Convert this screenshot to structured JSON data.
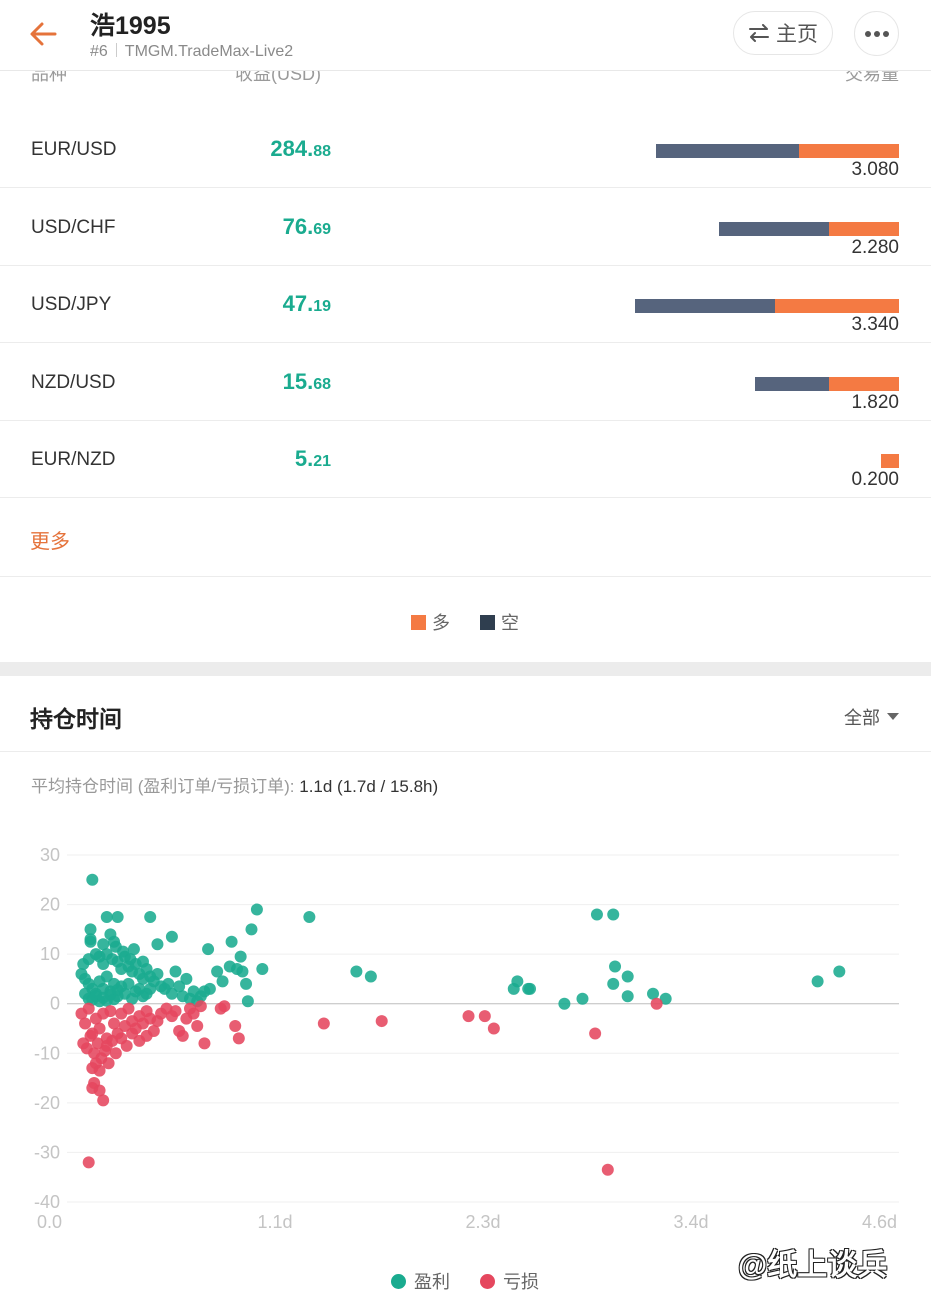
{
  "header": {
    "title": "浩1995",
    "rank": "#6",
    "server": "TMGM.TradeMax-Live2",
    "home_label": "主页"
  },
  "table": {
    "col_symbol": "品种",
    "col_pnl": "收益(USD)",
    "col_volume": "交易量",
    "rows": [
      {
        "symbol": "EUR/USD",
        "pnl_int": "284.",
        "pnl_dec": "88",
        "volume": "3.080",
        "short_frac": 0.59,
        "long_frac": 0.41
      },
      {
        "symbol": "USD/CHF",
        "pnl_int": "76.",
        "pnl_dec": "69",
        "volume": "2.280",
        "short_frac": 0.61,
        "long_frac": 0.39
      },
      {
        "symbol": "USD/JPY",
        "pnl_int": "47.",
        "pnl_dec": "19",
        "volume": "3.340",
        "short_frac": 0.53,
        "long_frac": 0.47
      },
      {
        "symbol": "NZD/USD",
        "pnl_int": "15.",
        "pnl_dec": "68",
        "volume": "1.820",
        "short_frac": 0.51,
        "long_frac": 0.49
      },
      {
        "symbol": "EUR/NZD",
        "pnl_int": "5.",
        "pnl_dec": "21",
        "volume": "0.200",
        "short_frac": 0.0,
        "long_frac": 1.0
      }
    ],
    "max_volume": 3.34,
    "more_label": "更多",
    "legend": [
      {
        "label": "多",
        "color": "#f47a43"
      },
      {
        "label": "空",
        "color": "#2f3e4f"
      }
    ]
  },
  "holding": {
    "title": "持仓时间",
    "filter": "全部",
    "avg_label": "平均持仓时间 (盈利订单/亏损订单):",
    "avg_value": "1.1d (1.7d / 15.8h)"
  },
  "colors": {
    "profit": "#1aab8f",
    "loss": "#e5475e",
    "accent": "#e5733b"
  },
  "chart_data": {
    "type": "scatter",
    "x_unit": "days",
    "xlim": [
      0,
      4.6
    ],
    "ylim": [
      -40,
      30
    ],
    "x_ticks": [
      "0.0",
      "1.1d",
      "2.3d",
      "3.4d",
      "4.6d"
    ],
    "y_ticks": [
      "30",
      "20",
      "10",
      "0",
      "-10",
      "-20",
      "-30",
      "-40"
    ],
    "grid": true,
    "legend": "bottom-center",
    "series": [
      {
        "name": "盈利",
        "color": "#1aab8f",
        "points": [
          [
            0.14,
            25
          ],
          [
            0.22,
            17.5
          ],
          [
            0.28,
            17.5
          ],
          [
            0.46,
            17.5
          ],
          [
            0.13,
            15
          ],
          [
            0.24,
            14
          ],
          [
            0.13,
            13
          ],
          [
            0.13,
            12.5
          ],
          [
            0.27,
            11.5
          ],
          [
            0.37,
            11
          ],
          [
            0.09,
            8
          ],
          [
            0.12,
            9
          ],
          [
            0.16,
            10
          ],
          [
            0.18,
            9.5
          ],
          [
            0.2,
            8
          ],
          [
            0.22,
            10
          ],
          [
            0.25,
            9
          ],
          [
            0.28,
            8.5
          ],
          [
            0.3,
            7
          ],
          [
            0.32,
            9.5
          ],
          [
            0.34,
            7.5
          ],
          [
            0.36,
            6.5
          ],
          [
            0.38,
            8
          ],
          [
            0.4,
            6
          ],
          [
            0.42,
            5
          ],
          [
            0.44,
            7
          ],
          [
            0.46,
            5.5
          ],
          [
            0.48,
            4.5
          ],
          [
            0.5,
            6
          ],
          [
            0.52,
            3.5
          ],
          [
            0.08,
            6
          ],
          [
            0.1,
            5
          ],
          [
            0.12,
            4
          ],
          [
            0.14,
            3
          ],
          [
            0.16,
            2
          ],
          [
            0.18,
            4.5
          ],
          [
            0.2,
            3
          ],
          [
            0.22,
            5.5
          ],
          [
            0.24,
            2.5
          ],
          [
            0.26,
            4
          ],
          [
            0.28,
            1.5
          ],
          [
            0.3,
            3.5
          ],
          [
            0.32,
            2
          ],
          [
            0.34,
            4
          ],
          [
            0.36,
            1
          ],
          [
            0.38,
            2.5
          ],
          [
            0.4,
            3
          ],
          [
            0.42,
            1.5
          ],
          [
            0.44,
            2
          ],
          [
            0.46,
            3
          ],
          [
            0.1,
            2
          ],
          [
            0.12,
            1
          ],
          [
            0.14,
            0.8
          ],
          [
            0.16,
            1.5
          ],
          [
            0.18,
            0.5
          ],
          [
            0.2,
            1.2
          ],
          [
            0.22,
            0.6
          ],
          [
            0.24,
            1.8
          ],
          [
            0.26,
            0.9
          ],
          [
            0.28,
            2.8
          ],
          [
            0.54,
            3
          ],
          [
            0.56,
            4
          ],
          [
            0.58,
            2
          ],
          [
            0.6,
            6.5
          ],
          [
            0.62,
            3.5
          ],
          [
            0.64,
            1.5
          ],
          [
            0.66,
            5
          ],
          [
            0.68,
            1
          ],
          [
            0.7,
            2.5
          ],
          [
            0.72,
            0.5
          ],
          [
            0.2,
            12
          ],
          [
            0.26,
            12.5
          ],
          [
            0.31,
            10.5
          ],
          [
            0.35,
            9
          ],
          [
            0.42,
            8.5
          ],
          [
            0.5,
            12
          ],
          [
            0.58,
            13.5
          ],
          [
            0.74,
            1.5
          ],
          [
            0.76,
            2.5
          ],
          [
            0.79,
            3
          ],
          [
            0.78,
            11
          ],
          [
            0.83,
            6.5
          ],
          [
            0.86,
            4.5
          ],
          [
            0.9,
            7.5
          ],
          [
            0.91,
            12.5
          ],
          [
            0.94,
            7
          ],
          [
            0.96,
            9.5
          ],
          [
            0.97,
            6.5
          ],
          [
            0.99,
            4
          ],
          [
            1.0,
            0.5
          ],
          [
            1.02,
            15
          ],
          [
            1.05,
            19
          ],
          [
            1.08,
            7
          ],
          [
            1.34,
            17.5
          ],
          [
            1.6,
            6.5
          ],
          [
            1.68,
            5.5
          ],
          [
            2.47,
            3
          ],
          [
            2.49,
            4.5
          ],
          [
            2.55,
            3
          ],
          [
            2.56,
            3
          ],
          [
            2.75,
            0
          ],
          [
            2.85,
            1
          ],
          [
            2.93,
            18
          ],
          [
            3.02,
            18
          ],
          [
            3.03,
            7.5
          ],
          [
            3.02,
            4
          ],
          [
            3.1,
            5.5
          ],
          [
            3.1,
            1.5
          ],
          [
            3.24,
            2
          ],
          [
            3.31,
            1
          ],
          [
            4.15,
            4.5
          ],
          [
            4.27,
            6.5
          ]
        ]
      },
      {
        "name": "亏损",
        "color": "#e5475e",
        "points": [
          [
            0.08,
            -2
          ],
          [
            0.1,
            -4
          ],
          [
            0.12,
            -1
          ],
          [
            0.14,
            -6
          ],
          [
            0.16,
            -3
          ],
          [
            0.18,
            -5
          ],
          [
            0.2,
            -2
          ],
          [
            0.22,
            -7
          ],
          [
            0.24,
            -1.5
          ],
          [
            0.26,
            -4
          ],
          [
            0.09,
            -8
          ],
          [
            0.11,
            -9
          ],
          [
            0.13,
            -6.5
          ],
          [
            0.15,
            -10
          ],
          [
            0.17,
            -8
          ],
          [
            0.19,
            -11
          ],
          [
            0.21,
            -9.5
          ],
          [
            0.23,
            -12
          ],
          [
            0.25,
            -7.5
          ],
          [
            0.27,
            -10
          ],
          [
            0.14,
            -13
          ],
          [
            0.16,
            -12
          ],
          [
            0.18,
            -13.5
          ],
          [
            0.15,
            -16
          ],
          [
            0.14,
            -17
          ],
          [
            0.18,
            -17.5
          ],
          [
            0.2,
            -19.5
          ],
          [
            0.12,
            -32
          ],
          [
            0.22,
            -8.5
          ],
          [
            0.28,
            -6
          ],
          [
            0.3,
            -2
          ],
          [
            0.32,
            -4.5
          ],
          [
            0.34,
            -1
          ],
          [
            0.36,
            -3.5
          ],
          [
            0.38,
            -5
          ],
          [
            0.4,
            -2.5
          ],
          [
            0.42,
            -4
          ],
          [
            0.44,
            -1.5
          ],
          [
            0.46,
            -3
          ],
          [
            0.48,
            -5.5
          ],
          [
            0.3,
            -7
          ],
          [
            0.33,
            -8.5
          ],
          [
            0.36,
            -6
          ],
          [
            0.4,
            -7.5
          ],
          [
            0.44,
            -6.5
          ],
          [
            0.5,
            -3.5
          ],
          [
            0.52,
            -2
          ],
          [
            0.55,
            -1
          ],
          [
            0.58,
            -2.5
          ],
          [
            0.6,
            -1.5
          ],
          [
            0.62,
            -5.5
          ],
          [
            0.64,
            -6.5
          ],
          [
            0.66,
            -3
          ],
          [
            0.68,
            -1
          ],
          [
            0.7,
            -2
          ],
          [
            0.72,
            -4.5
          ],
          [
            0.74,
            -0.5
          ],
          [
            0.76,
            -8
          ],
          [
            0.85,
            -1
          ],
          [
            0.87,
            -0.5
          ],
          [
            0.93,
            -4.5
          ],
          [
            0.95,
            -7
          ],
          [
            1.42,
            -4
          ],
          [
            1.74,
            -3.5
          ],
          [
            2.22,
            -2.5
          ],
          [
            2.31,
            -2.5
          ],
          [
            2.36,
            -5
          ],
          [
            2.92,
            -6
          ],
          [
            2.99,
            -33.5
          ],
          [
            3.26,
            0
          ]
        ]
      }
    ]
  },
  "legend2": [
    {
      "label": "盈利",
      "color": "#1aab8f"
    },
    {
      "label": "亏损",
      "color": "#e5475e"
    }
  ],
  "watermark": "@纸上谈兵"
}
